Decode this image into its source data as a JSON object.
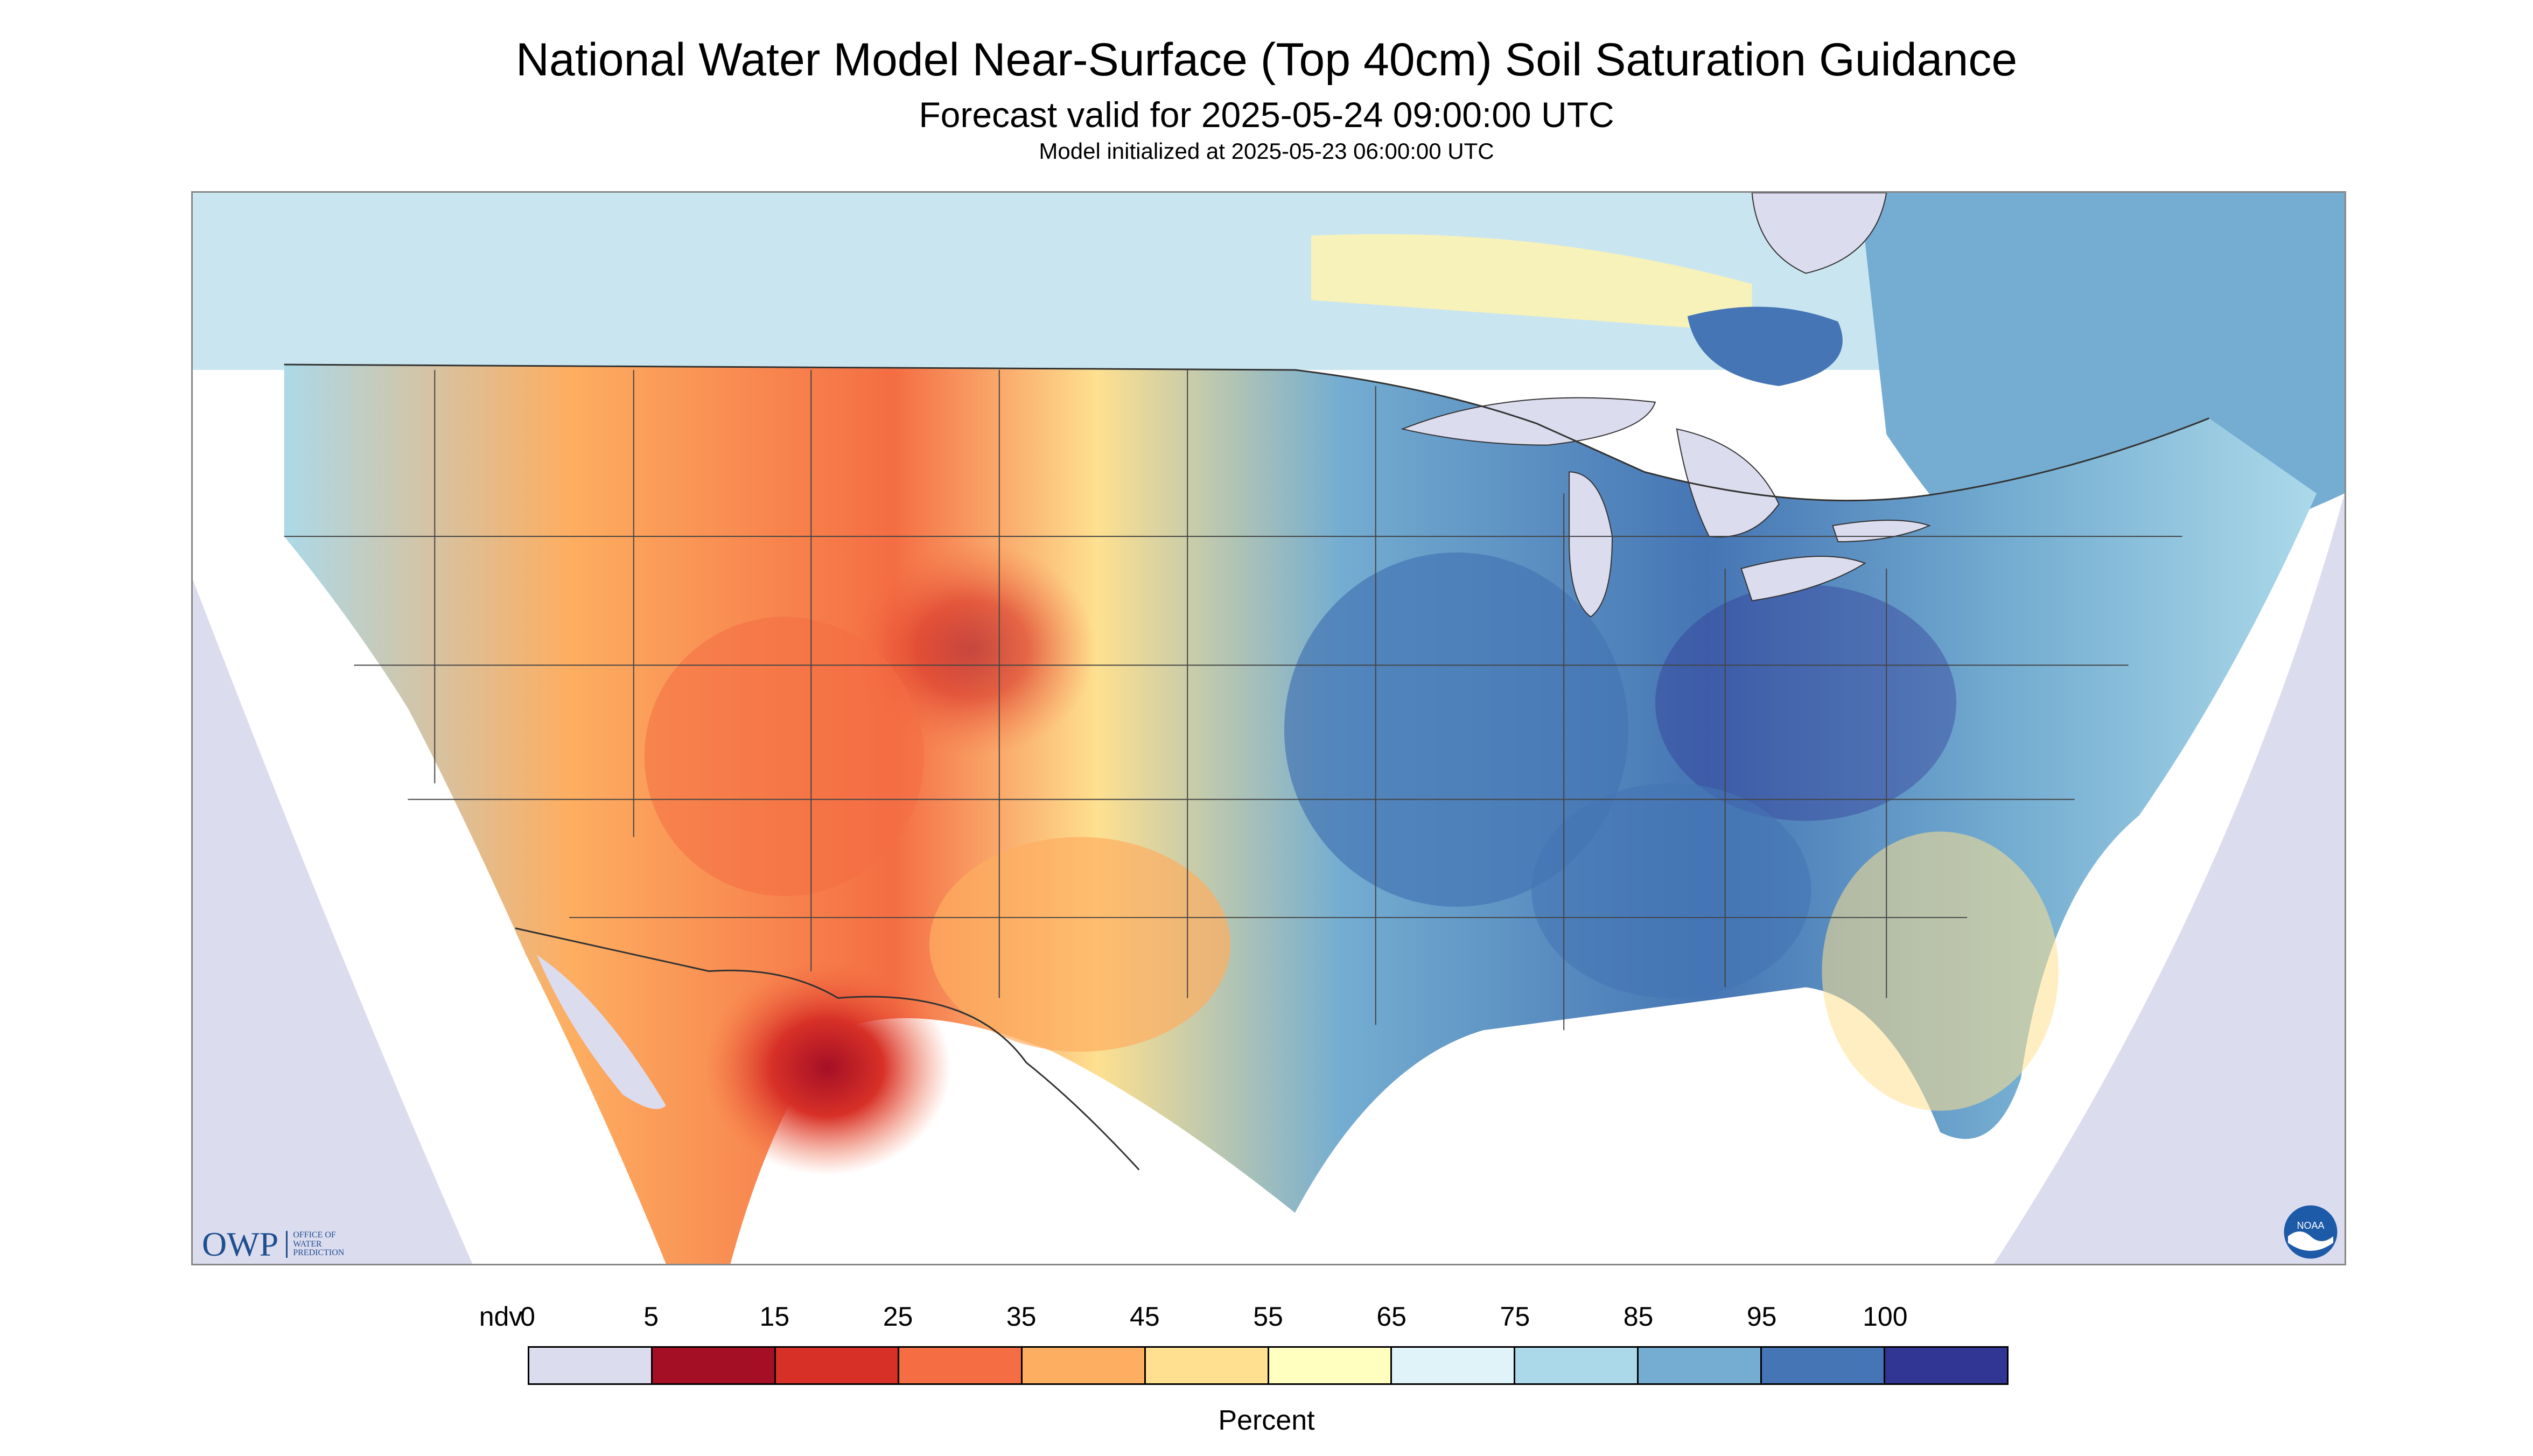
{
  "header": {
    "title": "National Water Model Near-Surface (Top 40cm) Soil Saturation Guidance",
    "forecast": "Forecast valid for 2025-05-24 09:00:00 UTC",
    "init": "Model initialized at 2025-05-23 06:00:00 UTC"
  },
  "logos": {
    "owp_letters": "OWP",
    "owp_sub": [
      "OFFICE OF",
      "WATER",
      "PREDICTION"
    ],
    "noaa": "NOAA"
  },
  "legend": {
    "unit": "Percent",
    "ticks": [
      "ndv",
      "0",
      "5",
      "15",
      "25",
      "35",
      "45",
      "55",
      "65",
      "75",
      "85",
      "95",
      "100"
    ],
    "colors": [
      "#dcdcef",
      "#a50f26",
      "#d73027",
      "#f46d43",
      "#fdae61",
      "#fee090",
      "#ffffbf",
      "#e0f3f8",
      "#abd9e9",
      "#74add1",
      "#4575b4",
      "#313695"
    ]
  },
  "map_colors": {
    "no_data": "#dcdcef",
    "water": "#dcdcef",
    "boundary": "#333333"
  }
}
